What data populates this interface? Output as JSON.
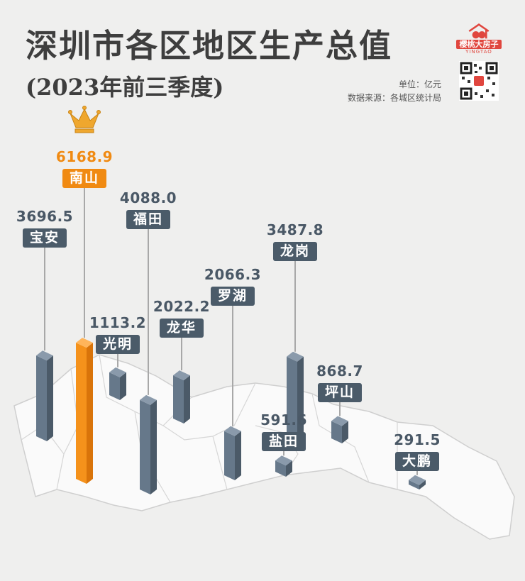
{
  "title": "深圳市各区地区生产总值",
  "subtitle": "(2023年前三季度)",
  "unit": "单位：亿元",
  "source": "数据来源：各城区统计局",
  "logo": {
    "name": "樱桃大房子",
    "sub": "YINGTAO"
  },
  "colors": {
    "bar": "#5d6e7e",
    "top_bar": "#f5921b",
    "label": "#4b5b69",
    "accent": "#f08a12"
  },
  "chart_data": {
    "type": "bar",
    "title": "深圳市各区地区生产总值",
    "subtitle": "(2023年前三季度)",
    "unit": "亿元",
    "categories": [
      "宝安",
      "南山",
      "光明",
      "福田",
      "龙华",
      "罗湖",
      "龙岗",
      "盐田",
      "坪山",
      "大鹏"
    ],
    "values": [
      3696.5,
      6168.9,
      1113.2,
      4088.0,
      2022.2,
      2066.3,
      3487.8,
      591.6,
      868.7,
      291.5
    ],
    "value_labels": [
      "3696.5",
      "6168.9",
      "1113.2",
      "4088.0",
      "2022.2",
      "2066.3",
      "3487.8",
      "591.6",
      "868.7",
      "291.5"
    ],
    "highlight": "南山",
    "highlight_icon": "crown-icon"
  }
}
